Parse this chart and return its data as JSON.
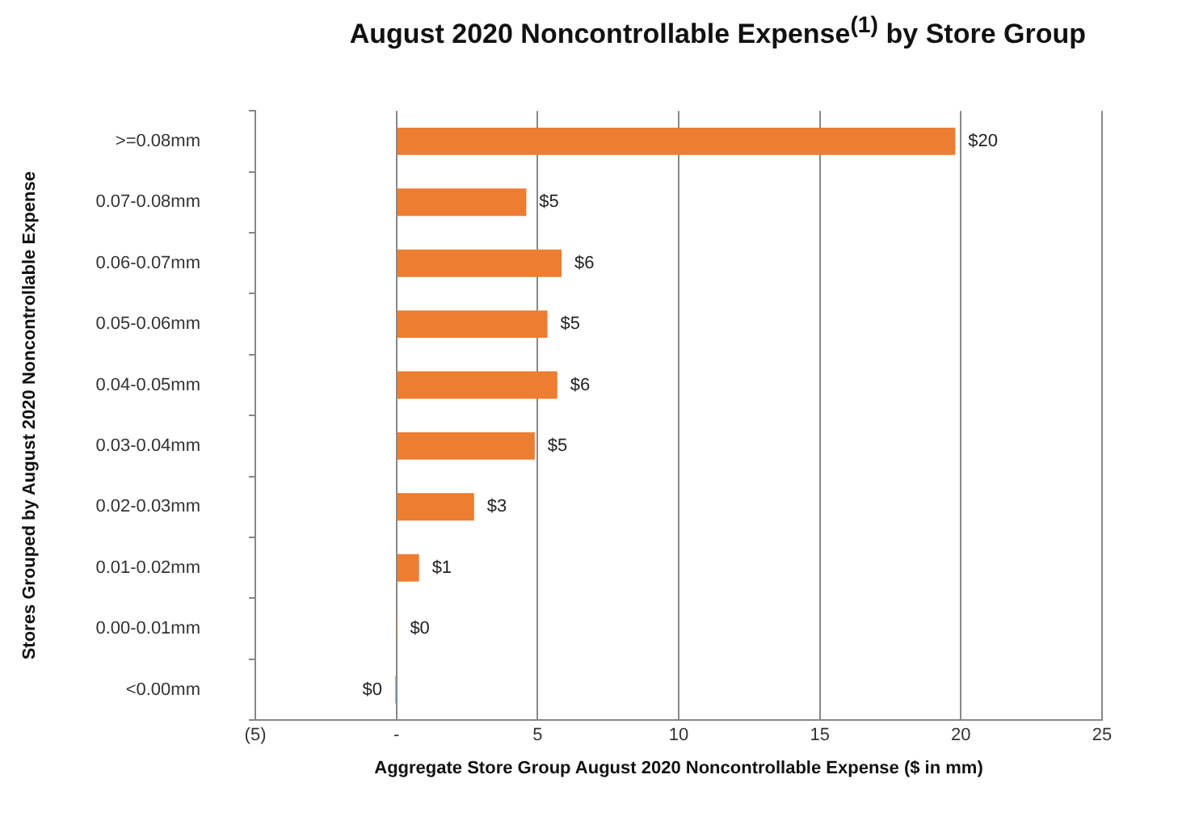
{
  "chart_data": {
    "type": "bar",
    "orientation": "horizontal",
    "title": "August 2020 Noncontrollable Expense$^{(1)}$ by Store Group",
    "xlabel": "Aggregate Store Group August 2020 Noncontrollable Expense ($ in mm)",
    "ylabel": "Stores Grouped by August 2020 Noncontrollable Expense",
    "categories": [
      ">=0.08mm",
      "0.07-0.08mm",
      "0.06-0.07mm",
      "0.05-0.06mm",
      "0.04-0.05mm",
      "0.03-0.04mm",
      "0.02-0.03mm",
      "0.01-0.02mm",
      "0.00-0.01mm",
      "<0.00mm"
    ],
    "values": [
      19.8,
      4.6,
      5.85,
      5.35,
      5.7,
      4.9,
      2.75,
      0.8,
      0.02,
      -0.05
    ],
    "value_labels": [
      "$20",
      "$5",
      "$6",
      "$5",
      "$6",
      "$5",
      "$3",
      "$1",
      "$0",
      "$0"
    ],
    "color": "#ed7d31",
    "xlim": [
      -5,
      25
    ],
    "xticks": [
      {
        "value": -5,
        "label": "(5)"
      },
      {
        "value": 0,
        "label": "-"
      },
      5,
      10,
      15,
      20,
      25
    ],
    "grid": "x"
  }
}
